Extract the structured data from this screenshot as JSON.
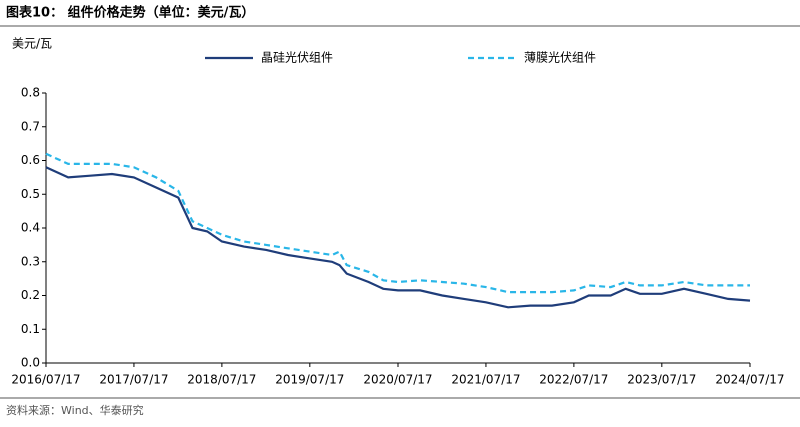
{
  "chart_data": {
    "type": "line",
    "title": "图表10：  组件价格走势（单位：美元/瓦）",
    "y_label": "美元/瓦",
    "source": "资料来源：Wind、华泰研究",
    "x": [
      "2016/07/17",
      "2016/10/17",
      "2017/01/17",
      "2017/04/17",
      "2017/07/17",
      "2017/10/17",
      "2018/01/17",
      "2018/03/17",
      "2018/05/17",
      "2018/07/17",
      "2018/10/17",
      "2019/01/17",
      "2019/04/17",
      "2019/07/17",
      "2019/10/17",
      "2019/11/17",
      "2019/12/17",
      "2020/03/17",
      "2020/05/17",
      "2020/07/17",
      "2020/10/17",
      "2021/01/17",
      "2021/04/17",
      "2021/07/17",
      "2021/10/17",
      "2022/01/17",
      "2022/04/17",
      "2022/07/17",
      "2022/09/17",
      "2022/12/17",
      "2023/02/17",
      "2023/04/17",
      "2023/07/17",
      "2023/10/17",
      "2024/01/17",
      "2024/04/17",
      "2024/07/17"
    ],
    "series": [
      {
        "name": "晶硅光伏组件",
        "color": "#1f3d7a",
        "dashed": false,
        "values": [
          0.58,
          0.55,
          0.555,
          0.56,
          0.55,
          0.52,
          0.49,
          0.4,
          0.39,
          0.36,
          0.345,
          0.335,
          0.32,
          0.31,
          0.3,
          0.29,
          0.265,
          0.24,
          0.22,
          0.215,
          0.215,
          0.2,
          0.19,
          0.18,
          0.165,
          0.17,
          0.17,
          0.18,
          0.2,
          0.2,
          0.22,
          0.205,
          0.205,
          0.22,
          0.205,
          0.19,
          0.185
        ]
      },
      {
        "name": "薄膜光伏组件",
        "color": "#29b6e8",
        "dashed": true,
        "values": [
          0.62,
          0.59,
          0.59,
          0.59,
          0.58,
          0.55,
          0.51,
          0.42,
          0.4,
          0.38,
          0.36,
          0.35,
          0.34,
          0.33,
          0.32,
          0.33,
          0.29,
          0.27,
          0.245,
          0.24,
          0.245,
          0.24,
          0.235,
          0.225,
          0.21,
          0.21,
          0.21,
          0.215,
          0.23,
          0.225,
          0.24,
          0.23,
          0.23,
          0.24,
          0.23,
          0.23,
          0.23
        ]
      }
    ],
    "ylim": [
      0,
      0.8
    ],
    "yticks": [
      {
        "value": 0,
        "label": "0.0"
      },
      0.1,
      0.2,
      0.3,
      0.4,
      0.5,
      0.6,
      0.7,
      0.8
    ],
    "xlim": [
      "2016/07/17",
      "2024/07/17"
    ],
    "xticks": [
      "2016/07/17",
      "2017/07/17",
      "2018/07/17",
      "2019/07/17",
      "2020/07/17",
      "2021/07/17",
      "2022/07/17",
      "2023/07/17",
      "2024/07/17"
    ]
  }
}
